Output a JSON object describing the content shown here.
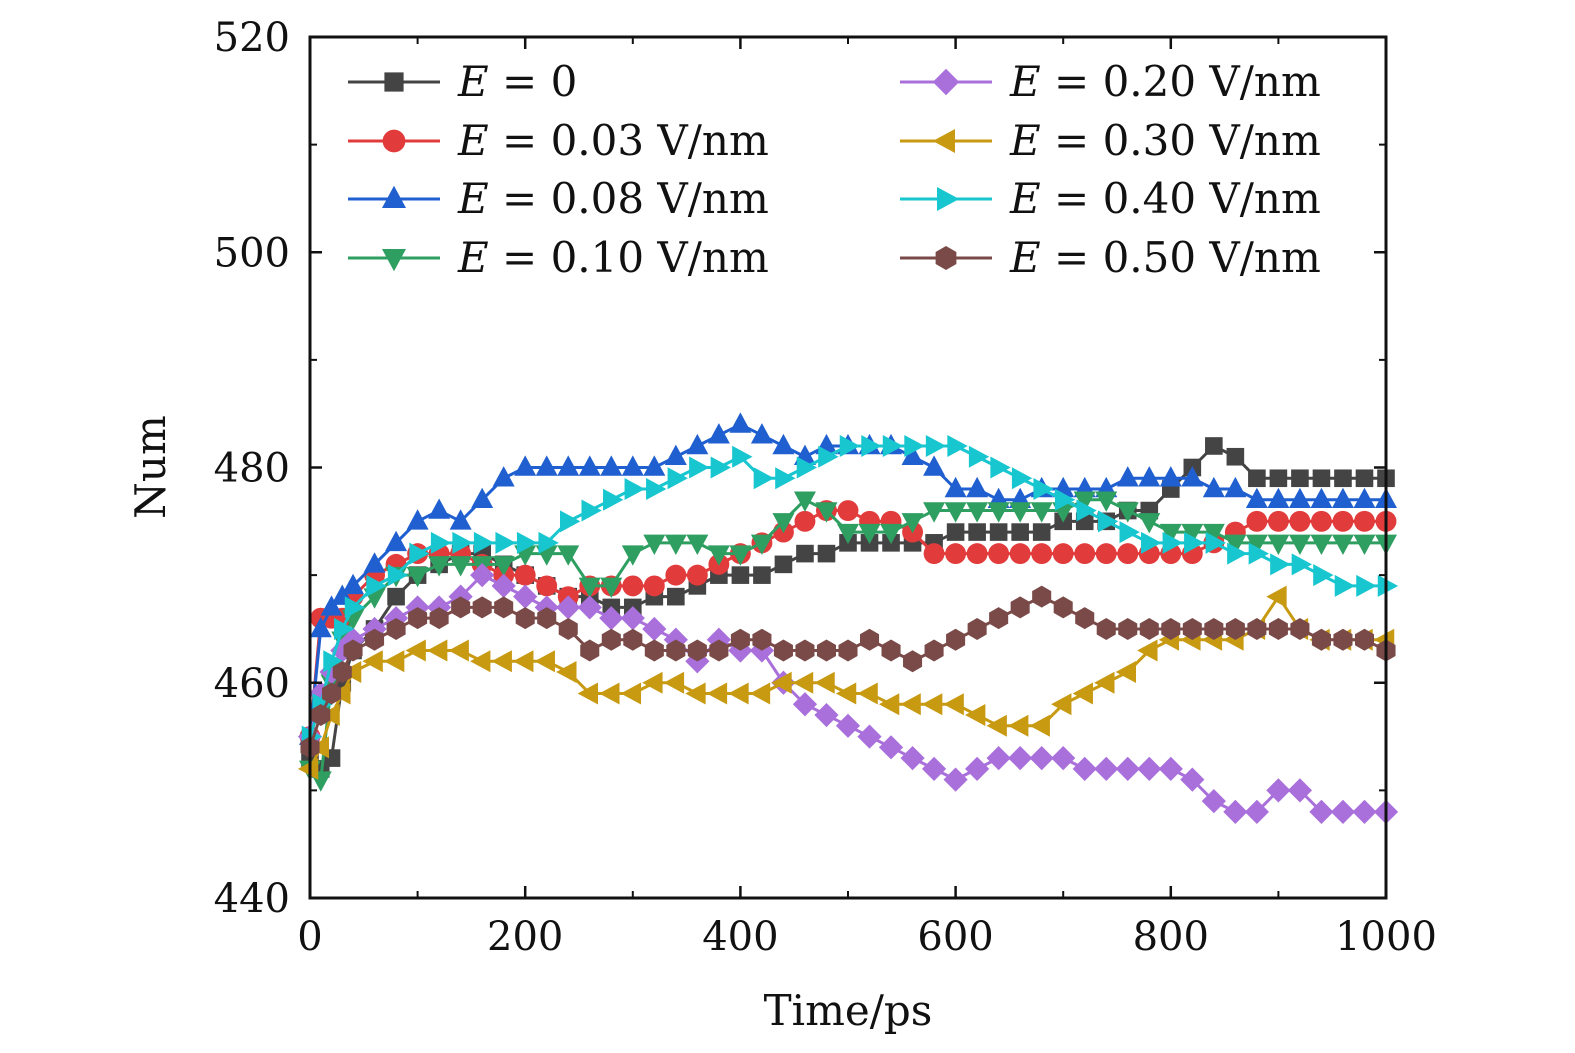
{
  "chart_data": {
    "type": "line",
    "title": "",
    "xlabel": "Time/ps",
    "ylabel": "Num",
    "xlim": [
      0,
      1000
    ],
    "ylim": [
      440,
      520
    ],
    "xticks": [
      0,
      200,
      400,
      600,
      800,
      1000
    ],
    "yticks": [
      440,
      460,
      480,
      500,
      520
    ],
    "xtick_labels": [
      "0",
      "200",
      "400",
      "600",
      "800",
      "1000"
    ],
    "ytick_labels": [
      "440",
      "460",
      "480",
      "500",
      "520"
    ],
    "legend_position": "top",
    "x": [
      0,
      10,
      20,
      30,
      40,
      60,
      80,
      100,
      120,
      140,
      160,
      180,
      200,
      220,
      240,
      260,
      280,
      300,
      320,
      340,
      360,
      380,
      400,
      420,
      440,
      460,
      480,
      500,
      520,
      540,
      560,
      580,
      600,
      620,
      640,
      660,
      680,
      700,
      720,
      740,
      760,
      780,
      800,
      820,
      840,
      860,
      880,
      900,
      920,
      940,
      960,
      980,
      1000
    ],
    "series": [
      {
        "name": "E = 0",
        "legend_var": "E",
        "legend_rest": "= 0",
        "color": "#444444",
        "marker": "square",
        "values": [
          453,
          452,
          453,
          460,
          463,
          465,
          468,
          470,
          471,
          472,
          472,
          471,
          470,
          469,
          468,
          468,
          467,
          467,
          468,
          468,
          469,
          470,
          470,
          470,
          471,
          472,
          472,
          473,
          473,
          473,
          473,
          473,
          474,
          474,
          474,
          474,
          474,
          475,
          475,
          475,
          476,
          476,
          478,
          480,
          482,
          481,
          479,
          479,
          479,
          479,
          479,
          479,
          479
        ]
      },
      {
        "name": "E = 0.03 V/nm",
        "legend_var": "E",
        "legend_rest": "= 0.03 V/nm",
        "color": "#e23b3b",
        "marker": "circle",
        "values": [
          455,
          466,
          466,
          466,
          468,
          470,
          471,
          472,
          472,
          472,
          471,
          470,
          470,
          469,
          468,
          469,
          469,
          469,
          469,
          470,
          470,
          471,
          472,
          473,
          474,
          475,
          476,
          476,
          475,
          475,
          474,
          472,
          472,
          472,
          472,
          472,
          472,
          472,
          472,
          472,
          472,
          472,
          472,
          472,
          473,
          474,
          475,
          475,
          475,
          475,
          475,
          475,
          475
        ]
      },
      {
        "name": "E = 0.08 V/nm",
        "legend_var": "E",
        "legend_rest": "= 0.08 V/nm",
        "color": "#1f5fd0",
        "marker": "triangle-up",
        "values": [
          455,
          465,
          467,
          468,
          469,
          471,
          473,
          475,
          476,
          475,
          477,
          479,
          480,
          480,
          480,
          480,
          480,
          480,
          480,
          481,
          482,
          483,
          484,
          483,
          482,
          481,
          482,
          482,
          482,
          482,
          481,
          480,
          478,
          478,
          477,
          477,
          478,
          478,
          478,
          478,
          479,
          479,
          479,
          479,
          478,
          478,
          477,
          477,
          477,
          477,
          477,
          477,
          477
        ]
      },
      {
        "name": "E = 0.10 V/nm",
        "legend_var": "E",
        "legend_rest": "= 0.10 V/nm",
        "color": "#2e9e61",
        "marker": "triangle-down",
        "values": [
          452,
          451,
          460,
          464,
          466,
          468,
          470,
          470,
          471,
          471,
          471,
          471,
          472,
          472,
          472,
          469,
          469,
          472,
          473,
          473,
          473,
          472,
          472,
          473,
          475,
          477,
          476,
          474,
          474,
          474,
          475,
          476,
          476,
          476,
          476,
          476,
          476,
          476,
          477,
          477,
          476,
          475,
          474,
          474,
          474,
          473,
          473,
          473,
          473,
          473,
          473,
          473,
          473
        ]
      },
      {
        "name": "E = 0.20 V/nm",
        "legend_var": "E",
        "legend_rest": "= 0.20 V/nm",
        "color": "#a970dc",
        "marker": "diamond",
        "values": [
          455,
          459,
          461,
          463,
          464,
          465,
          466,
          467,
          467,
          468,
          470,
          469,
          468,
          467,
          467,
          467,
          466,
          466,
          465,
          464,
          462,
          464,
          463,
          463,
          460,
          458,
          457,
          456,
          455,
          454,
          453,
          452,
          451,
          452,
          453,
          453,
          453,
          453,
          452,
          452,
          452,
          452,
          452,
          451,
          449,
          448,
          448,
          450,
          450,
          448,
          448,
          448,
          448
        ]
      },
      {
        "name": "E = 0.30 V/nm",
        "legend_var": "E",
        "legend_rest": "= 0.30 V/nm",
        "color": "#c89a12",
        "marker": "triangle-left",
        "values": [
          452,
          454,
          457,
          459,
          461,
          462,
          462,
          463,
          463,
          463,
          462,
          462,
          462,
          462,
          461,
          459,
          459,
          459,
          460,
          460,
          459,
          459,
          459,
          459,
          460,
          460,
          460,
          459,
          459,
          458,
          458,
          458,
          458,
          457,
          456,
          456,
          456,
          458,
          459,
          460,
          461,
          463,
          464,
          464,
          464,
          464,
          465,
          468,
          465,
          464,
          464,
          464,
          464
        ]
      },
      {
        "name": "E = 0.40 V/nm",
        "legend_var": "E",
        "legend_rest": "= 0.40 V/nm",
        "color": "#18c6cf",
        "marker": "triangle-right",
        "values": [
          455,
          458,
          462,
          465,
          467,
          469,
          470,
          472,
          473,
          473,
          473,
          473,
          473,
          473,
          475,
          476,
          477,
          478,
          478,
          479,
          480,
          480,
          481,
          479,
          479,
          480,
          481,
          482,
          482,
          482,
          482,
          482,
          482,
          481,
          480,
          479,
          478,
          477,
          476,
          475,
          474,
          473,
          473,
          473,
          473,
          472,
          472,
          471,
          471,
          470,
          469,
          469,
          469
        ]
      },
      {
        "name": "E = 0.50 V/nm",
        "legend_var": "E",
        "legend_rest": "= 0.50 V/nm",
        "color": "#7a4a48",
        "marker": "hexagon",
        "values": [
          454,
          457,
          459,
          461,
          463,
          464,
          465,
          466,
          466,
          467,
          467,
          467,
          466,
          466,
          465,
          463,
          464,
          464,
          463,
          463,
          463,
          463,
          464,
          464,
          463,
          463,
          463,
          463,
          464,
          463,
          462,
          463,
          464,
          465,
          466,
          467,
          468,
          467,
          466,
          465,
          465,
          465,
          465,
          465,
          465,
          465,
          465,
          465,
          465,
          464,
          464,
          464,
          463
        ]
      }
    ]
  }
}
